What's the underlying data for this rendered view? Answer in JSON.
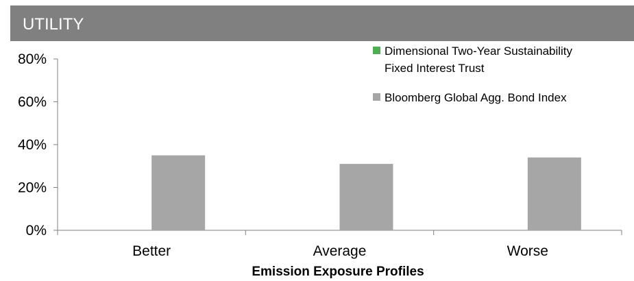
{
  "header": {
    "title": "UTILITY",
    "background": "#808080"
  },
  "chart_data": {
    "type": "bar",
    "title": "",
    "xlabel": "Emission Exposure Profiles",
    "ylabel": "",
    "ylim": [
      0,
      80
    ],
    "y_ticks": [
      "0%",
      "20%",
      "40%",
      "60%",
      "80%"
    ],
    "categories": [
      "Better",
      "Average",
      "Worse"
    ],
    "series": [
      {
        "name": "Dimensional Two-Year Sustainability Fixed Interest Trust",
        "name_lines": [
          "Dimensional Two-Year Sustainability",
          "Fixed Interest Trust"
        ],
        "color": "#4caf50",
        "values": [
          0,
          0,
          0
        ]
      },
      {
        "name": "Bloomberg Global Agg. Bond Index",
        "name_lines": [
          "Bloomberg Global Agg. Bond Index"
        ],
        "color": "#a6a6a6",
        "values": [
          35,
          31,
          34
        ]
      }
    ],
    "legend_position": "top-right",
    "grid": false
  }
}
